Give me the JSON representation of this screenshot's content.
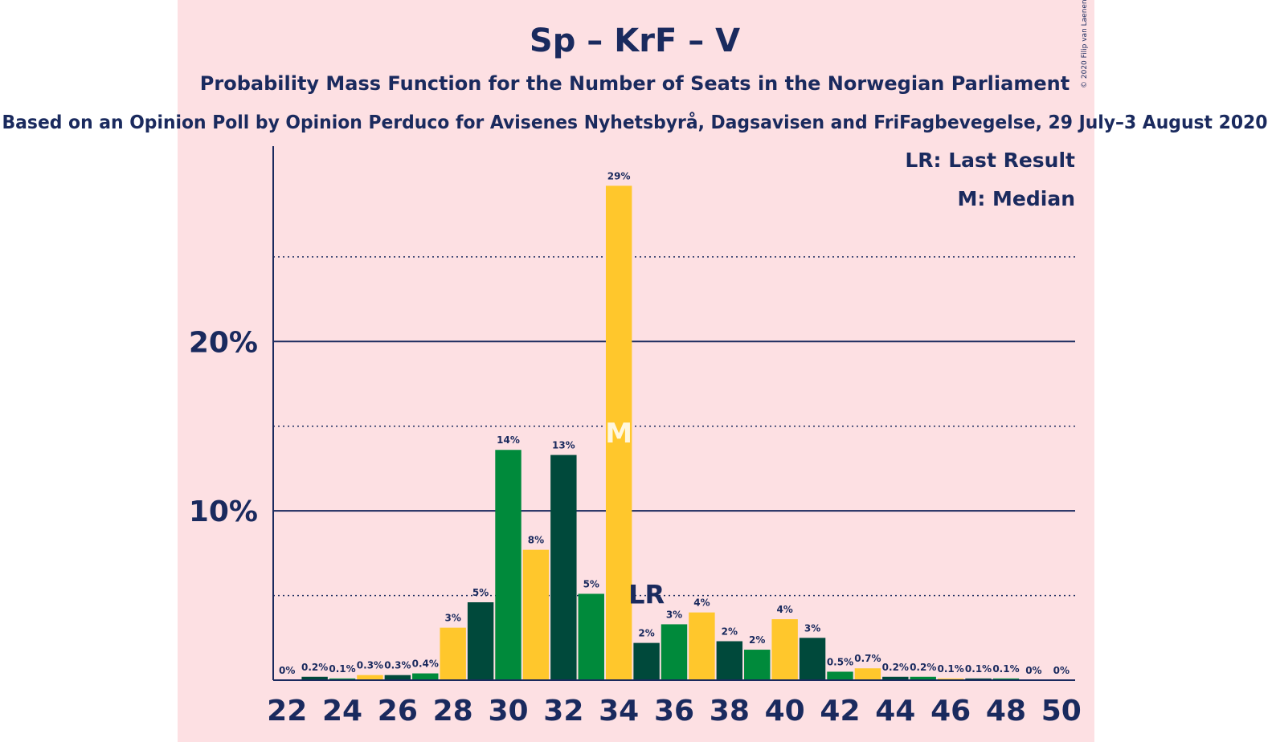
{
  "chart_data": {
    "type": "bar",
    "title": "Sp – KrF – V",
    "subtitle": "Probability Mass Function for the Number of Seats in the Norwegian Parliament",
    "source": "Based on an Opinion Poll by Opinion Perduco for Avisenes Nyhetsbyrå, Dagsavisen and FriFagbevegelse, 29 July–3 August 2020",
    "copyright": "© 2020 Filip van Laenen",
    "legend": [
      "LR: Last Result",
      "M: Median"
    ],
    "categories": [
      22,
      23,
      24,
      25,
      26,
      27,
      28,
      29,
      30,
      31,
      32,
      33,
      34,
      35,
      36,
      37,
      38,
      39,
      40,
      41,
      42,
      43,
      44,
      45,
      46,
      47,
      48,
      49,
      50
    ],
    "values": [
      0,
      0.2,
      0.1,
      0.3,
      0.3,
      0.4,
      3.1,
      4.6,
      13.6,
      7.7,
      13.3,
      5.1,
      29.2,
      2.2,
      3.3,
      4.0,
      2.3,
      1.8,
      3.6,
      2.5,
      0.5,
      0.7,
      0.2,
      0.2,
      0.1,
      0.1,
      0.1,
      0,
      0
    ],
    "value_labels": [
      "0%",
      "0.2%",
      "0.1%",
      "0.3%",
      "0.3%",
      "0.4%",
      "3%",
      "5%",
      "14%",
      "8%",
      "13%",
      "5%",
      "29%",
      "2%",
      "3%",
      "4%",
      "2%",
      "2%",
      "4%",
      "3%",
      "0.5%",
      "0.7%",
      "0.2%",
      "0.2%",
      "0.1%",
      "0.1%",
      "0.1%",
      "0%",
      "0%"
    ],
    "bar_colors": [
      "#00493b",
      "#00493b",
      "#008a3b",
      "#ffc72c",
      "#00493b",
      "#008a3b",
      "#ffc72c",
      "#00493b",
      "#008a3b",
      "#ffc72c",
      "#00493b",
      "#008a3b",
      "#ffc72c",
      "#00493b",
      "#008a3b",
      "#ffc72c",
      "#00493b",
      "#008a3b",
      "#ffc72c",
      "#00493b",
      "#008a3b",
      "#ffc72c",
      "#00493b",
      "#008a3b",
      "#ffc72c",
      "#00493b",
      "#008a3b",
      "#ffc72c",
      "#00493b"
    ],
    "x_tick_labels": [
      "22",
      "24",
      "26",
      "28",
      "30",
      "32",
      "34",
      "36",
      "38",
      "40",
      "42",
      "44",
      "46",
      "48",
      "50"
    ],
    "y_tick_labels": [
      "10%",
      "20%"
    ],
    "ylim": [
      0,
      32
    ],
    "median_seat": 34,
    "median_marker": "M",
    "last_result_seat": 35,
    "last_result_marker": "LR",
    "colors": {
      "dark_green": "#00493b",
      "green": "#008a3b",
      "yellow": "#ffc72c",
      "text": "#1a2a5e",
      "background": "#fde0e3"
    }
  }
}
